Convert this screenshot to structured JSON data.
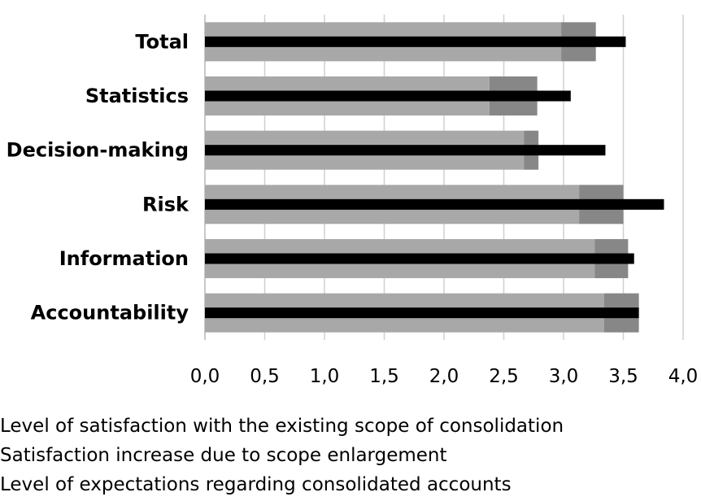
{
  "chart_data": {
    "type": "bar",
    "orientation": "horizontal",
    "categories": [
      "Total",
      "Statistics",
      "Decision-making",
      "Risk",
      "Information",
      "Accountability"
    ],
    "series": [
      {
        "name": "Level of satisfaction with the existing scope of consolidation",
        "values": [
          2.98,
          2.38,
          2.67,
          3.13,
          3.26,
          3.34
        ],
        "color": "#a8a8a8"
      },
      {
        "name": "Satisfaction increase due to scope enlargement",
        "values": [
          0.29,
          0.4,
          0.12,
          0.37,
          0.28,
          0.29
        ],
        "color": "#878787"
      },
      {
        "name": "Level of expectations regarding consolidated accounts",
        "values": [
          3.52,
          3.06,
          3.35,
          3.84,
          3.59,
          3.63
        ],
        "color": "#000000"
      }
    ],
    "stacked_series": [
      0,
      1
    ],
    "overlay_series": 2,
    "xlim": [
      0,
      4
    ],
    "xticks": [
      "0,0",
      "0,5",
      "1,0",
      "1,5",
      "2,0",
      "2,5",
      "3,0",
      "3,5",
      "4,0"
    ],
    "grid": true,
    "legend_position": "bottom",
    "title": "",
    "xlabel": "",
    "ylabel": ""
  }
}
